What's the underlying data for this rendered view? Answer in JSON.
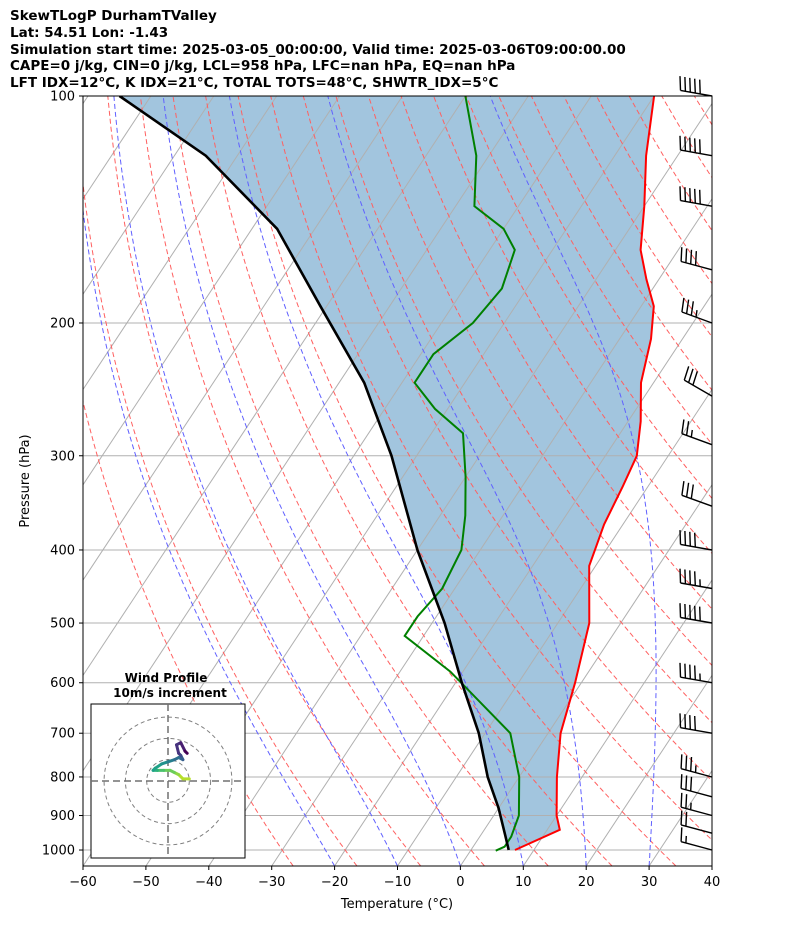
{
  "header": {
    "line1": "SkewTLogP DurhamTValley",
    "line2": "Lat: 54.51   Lon: -1.43",
    "line3": "Simulation start time: 2025-03-05_00:00:00, Valid time: 2025-03-06T09:00:00.00",
    "line4": "CAPE=0 j/kg, CIN=0 j/kg, LCL=958 hPa, LFC=nan hPa, EQ=nan hPa",
    "line5": "LFT IDX=12°C, K IDX=21°C, TOTAL TOTS=48°C, SHWTR_IDX=5°C"
  },
  "chart_data": {
    "type": "skewt",
    "title": "SkewTLogP DurhamTValley",
    "xlabel": "Temperature (°C)",
    "ylabel": "Pressure (hPa)",
    "xlim": [
      -60,
      40
    ],
    "ylim": [
      1050,
      100
    ],
    "x_ticks": [
      "−60",
      "−50",
      "−40",
      "−30",
      "−20",
      "−10",
      "0",
      "10",
      "20",
      "30",
      "40"
    ],
    "y_ticks": [
      "100",
      "200",
      "300",
      "400",
      "500",
      "600",
      "700",
      "800",
      "900",
      "1000"
    ],
    "temperature": {
      "color": "#ff0000",
      "points": [
        [
          7,
          1000
        ],
        [
          12,
          940
        ],
        [
          10,
          900
        ],
        [
          6,
          800
        ],
        [
          2,
          700
        ],
        [
          -1,
          600
        ],
        [
          -5,
          500
        ],
        [
          -11,
          420
        ],
        [
          -13,
          370
        ],
        [
          -14,
          330
        ],
        [
          -15,
          300
        ],
        [
          -18,
          270
        ],
        [
          -22,
          240
        ],
        [
          -25,
          210
        ],
        [
          -28,
          190
        ],
        [
          -32,
          175
        ],
        [
          -36,
          160
        ],
        [
          -40,
          140
        ],
        [
          -45,
          120
        ],
        [
          -50,
          100
        ]
      ]
    },
    "dewpoint": {
      "color": "#008000",
      "points": [
        [
          4,
          1002
        ],
        [
          5,
          990
        ],
        [
          5,
          960
        ],
        [
          4,
          900
        ],
        [
          0,
          800
        ],
        [
          -6,
          700
        ],
        [
          -22,
          580
        ],
        [
          -33,
          520
        ],
        [
          -33,
          490
        ],
        [
          -32,
          450
        ],
        [
          -33,
          400
        ],
        [
          -36,
          360
        ],
        [
          -40,
          320
        ],
        [
          -45,
          280
        ],
        [
          -52,
          260
        ],
        [
          -58,
          240
        ],
        [
          -58,
          220
        ],
        [
          -55,
          200
        ],
        [
          -54,
          180
        ],
        [
          -56,
          160
        ],
        [
          -60,
          150
        ],
        [
          -67,
          140
        ],
        [
          -72,
          120
        ],
        [
          -80,
          100
        ]
      ]
    },
    "parcel_profile": {
      "color": "#000000",
      "points": [
        [
          6,
          1000
        ],
        [
          4,
          958
        ],
        [
          0,
          880
        ],
        [
          -5,
          800
        ],
        [
          -11,
          700
        ],
        [
          -19,
          600
        ],
        [
          -28,
          500
        ],
        [
          -40,
          400
        ],
        [
          -54,
          300
        ],
        [
          -66,
          240
        ],
        [
          -81,
          190
        ],
        [
          -96,
          150
        ],
        [
          -115,
          120
        ],
        [
          -135,
          100
        ]
      ]
    },
    "shading": "cape-cin",
    "wind_barbs": [
      {
        "p": 100,
        "speed_kt": 50,
        "dir_deg": 280
      },
      {
        "p": 120,
        "speed_kt": 50,
        "dir_deg": 280
      },
      {
        "p": 140,
        "speed_kt": 50,
        "dir_deg": 280
      },
      {
        "p": 170,
        "speed_kt": 40,
        "dir_deg": 285
      },
      {
        "p": 200,
        "speed_kt": 35,
        "dir_deg": 290
      },
      {
        "p": 250,
        "speed_kt": 30,
        "dir_deg": 300
      },
      {
        "p": 290,
        "speed_kt": 25,
        "dir_deg": 290
      },
      {
        "p": 350,
        "speed_kt": 30,
        "dir_deg": 290
      },
      {
        "p": 400,
        "speed_kt": 40,
        "dir_deg": 280
      },
      {
        "p": 450,
        "speed_kt": 45,
        "dir_deg": 280
      },
      {
        "p": 500,
        "speed_kt": 50,
        "dir_deg": 280
      },
      {
        "p": 600,
        "speed_kt": 45,
        "dir_deg": 280
      },
      {
        "p": 700,
        "speed_kt": 40,
        "dir_deg": 280
      },
      {
        "p": 800,
        "speed_kt": 35,
        "dir_deg": 285
      },
      {
        "p": 850,
        "speed_kt": 30,
        "dir_deg": 285
      },
      {
        "p": 900,
        "speed_kt": 25,
        "dir_deg": 285
      },
      {
        "p": 950,
        "speed_kt": 20,
        "dir_deg": 285
      },
      {
        "p": 1000,
        "speed_kt": 15,
        "dir_deg": 285
      }
    ],
    "hodograph": {
      "title": "Wind Profile",
      "subtitle": "10m/s increment",
      "rings_ms": [
        10,
        20,
        30
      ],
      "range_ms": 30,
      "points_ms": [
        [
          10,
          1
        ],
        [
          7,
          1
        ],
        [
          5,
          3
        ],
        [
          3,
          4
        ],
        [
          1,
          5
        ],
        [
          -2,
          5
        ],
        [
          -5,
          5
        ],
        [
          -7,
          5
        ],
        [
          -6,
          6
        ],
        [
          -3,
          8
        ],
        [
          0,
          9
        ],
        [
          3,
          10
        ],
        [
          5,
          11
        ],
        [
          7,
          10
        ],
        [
          6,
          12
        ],
        [
          5,
          13
        ],
        [
          4,
          17
        ],
        [
          6,
          18
        ],
        [
          8,
          14
        ],
        [
          9,
          13
        ]
      ]
    }
  }
}
